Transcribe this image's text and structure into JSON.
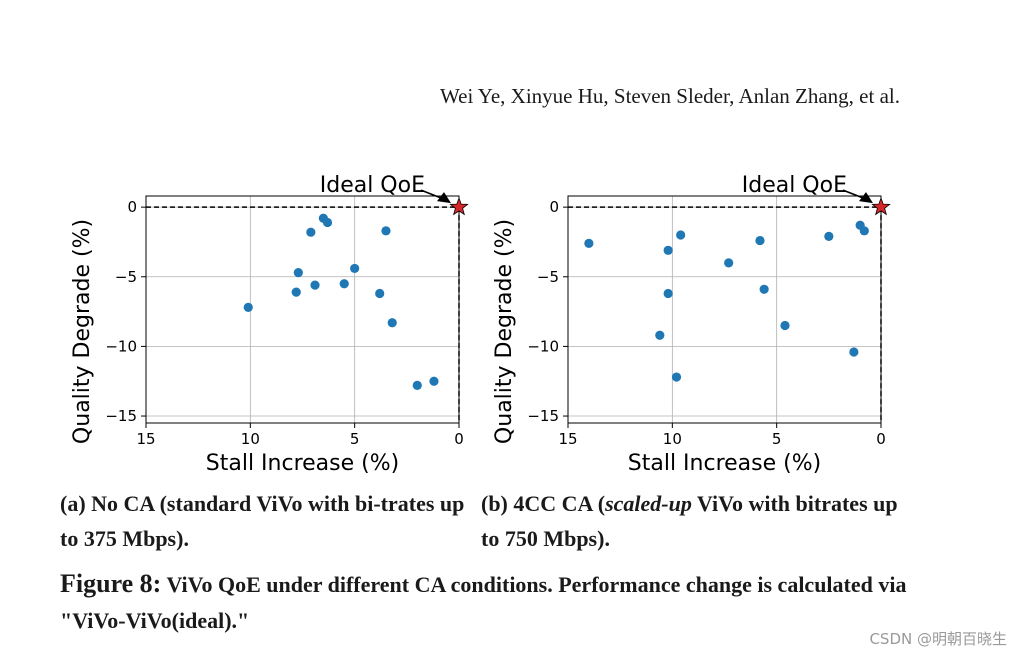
{
  "header": {
    "authors": "Wei Ye, Xinyue Hu, Steven Sleder, Anlan Zhang, et al."
  },
  "chart_data": [
    {
      "type": "scatter",
      "xlabel": "Stall Increase (%)",
      "ylabel": "Quality Degrade (%)",
      "xlim": [
        15,
        0
      ],
      "ylim": [
        -15.5,
        0.8
      ],
      "x_axis_inverted": true,
      "xticks": [
        "15",
        "10",
        "5",
        "0"
      ],
      "yticks": [
        "0",
        "−5",
        "−10",
        "−15"
      ],
      "grid": true,
      "color": "#1f77b4",
      "points": [
        {
          "x": 10.1,
          "y": -7.2
        },
        {
          "x": 7.8,
          "y": -6.1
        },
        {
          "x": 7.7,
          "y": -4.7
        },
        {
          "x": 7.1,
          "y": -1.8
        },
        {
          "x": 6.9,
          "y": -5.6
        },
        {
          "x": 6.5,
          "y": -0.8
        },
        {
          "x": 6.3,
          "y": -1.1
        },
        {
          "x": 5.5,
          "y": -5.5
        },
        {
          "x": 5.0,
          "y": -4.4
        },
        {
          "x": 3.8,
          "y": -6.2
        },
        {
          "x": 3.5,
          "y": -1.7
        },
        {
          "x": 3.2,
          "y": -8.3
        },
        {
          "x": 2.0,
          "y": -12.8
        },
        {
          "x": 1.2,
          "y": -12.5
        }
      ],
      "ideal": {
        "x": 0,
        "y": 0,
        "label": "Ideal QoE",
        "color": "#d62728"
      }
    },
    {
      "type": "scatter",
      "xlabel": "Stall Increase (%)",
      "ylabel": "Quality Degrade (%)",
      "xlim": [
        15,
        0
      ],
      "ylim": [
        -15.5,
        0.8
      ],
      "x_axis_inverted": true,
      "xticks": [
        "15",
        "10",
        "5",
        "0"
      ],
      "yticks": [
        "0",
        "−5",
        "−10",
        "−15"
      ],
      "grid": true,
      "color": "#1f77b4",
      "points": [
        {
          "x": 14.0,
          "y": -2.6
        },
        {
          "x": 10.6,
          "y": -9.2
        },
        {
          "x": 10.2,
          "y": -3.1
        },
        {
          "x": 10.2,
          "y": -6.2
        },
        {
          "x": 9.8,
          "y": -12.2
        },
        {
          "x": 9.6,
          "y": -2.0
        },
        {
          "x": 7.3,
          "y": -4.0
        },
        {
          "x": 5.8,
          "y": -2.4
        },
        {
          "x": 5.6,
          "y": -5.9
        },
        {
          "x": 4.6,
          "y": -8.5
        },
        {
          "x": 2.5,
          "y": -2.1
        },
        {
          "x": 1.3,
          "y": -10.4
        },
        {
          "x": 1.0,
          "y": -1.3
        },
        {
          "x": 0.8,
          "y": -1.7
        }
      ],
      "ideal": {
        "x": 0,
        "y": 0,
        "label": "Ideal QoE",
        "color": "#d62728"
      }
    }
  ],
  "captions": {
    "a_pre": "(a) No CA (standard ViVo with bi-trates up to 375 Mbps).",
    "b_pre": "(b) 4CC CA (",
    "b_emph": "scaled-up",
    "b_post": " ViVo with bitrates up to 750 Mbps)."
  },
  "figure_caption": {
    "label": "Figure 8:",
    "text": " ViVo QoE under different CA conditions. Performance change is calculated via \"ViVo-ViVo(ideal).\""
  },
  "watermark": "CSDN @明朝百晓生"
}
